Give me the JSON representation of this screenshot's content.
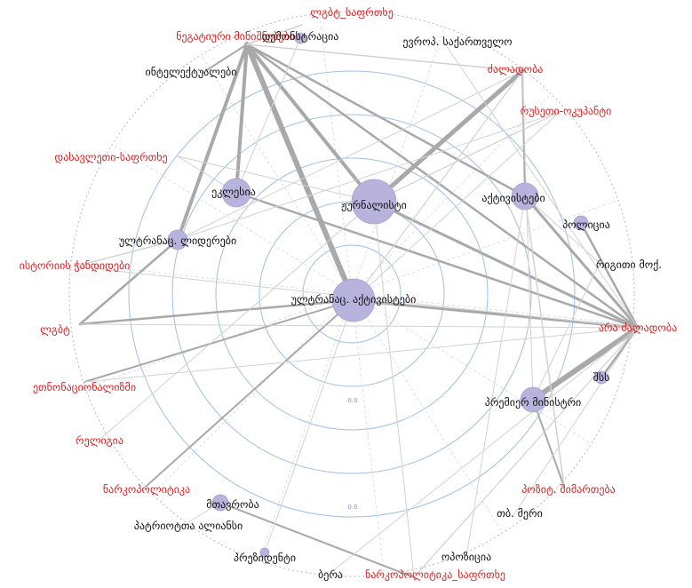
{
  "ring_ticks": [
    "0.0",
    "0.0"
  ],
  "nodes": [
    {
      "id": "lgbt_sap",
      "label": "ლგბტ_საფრთხე",
      "color": "#dd2222"
    },
    {
      "id": "neg_min",
      "label": "ნეგატიური მინიშნებები",
      "color": "#dd2222"
    },
    {
      "id": "demon",
      "label": "დემონსტრაცია",
      "color": "#111111"
    },
    {
      "id": "euro",
      "label": "ევროპ. საქართველო",
      "color": "#111111"
    },
    {
      "id": "intel",
      "label": "ინტელექტუალები",
      "color": "#111111"
    },
    {
      "id": "dzal",
      "label": "ძალადობა",
      "color": "#dd2222"
    },
    {
      "id": "rus",
      "label": "რუსეთი-ოკუპანტი",
      "color": "#dd2222"
    },
    {
      "id": "dasav",
      "label": "დასავლეთი-საფრთხე",
      "color": "#dd2222"
    },
    {
      "id": "eklesia",
      "label": "ეკლესია",
      "color": "#111111"
    },
    {
      "id": "jurn",
      "label": "ჟურნალისტი",
      "color": "#111111"
    },
    {
      "id": "aqt",
      "label": "აქტივისტები",
      "color": "#111111"
    },
    {
      "id": "pol",
      "label": "პოლიცია",
      "color": "#111111"
    },
    {
      "id": "ultra_lid",
      "label": "ულტრანაც. ლიდერები",
      "color": "#111111"
    },
    {
      "id": "istor",
      "label": "ისტორიის ჭანდიდები",
      "color": "#dd2222"
    },
    {
      "id": "rigit",
      "label": "რიგითი მოქ.",
      "color": "#111111"
    },
    {
      "id": "ultra_aqt",
      "label": "ულტრანაც. აქტივისტები",
      "color": "#111111"
    },
    {
      "id": "lgbt",
      "label": "ლგბტ",
      "color": "#dd2222"
    },
    {
      "id": "ara_dzal",
      "label": "არა ძალადობა",
      "color": "#dd2222"
    },
    {
      "id": "shs",
      "label": "შსს",
      "color": "#111111"
    },
    {
      "id": "etnonac",
      "label": "ეთნონაციონალიზმი",
      "color": "#dd2222"
    },
    {
      "id": "premier",
      "label": "პრემიერ მინისტრი",
      "color": "#111111"
    },
    {
      "id": "religia",
      "label": "რელიგია",
      "color": "#dd2222"
    },
    {
      "id": "narko",
      "label": "ნარკოპოლიტიკა",
      "color": "#dd2222"
    },
    {
      "id": "pozit",
      "label": "პოზიტ. შიმართება",
      "color": "#dd2222"
    },
    {
      "id": "mtavroba",
      "label": "მთავრობა",
      "color": "#111111"
    },
    {
      "id": "tb_meri",
      "label": "თბ. მერი",
      "color": "#111111"
    },
    {
      "id": "patriot",
      "label": "პატრიოტთა ალიანსი",
      "color": "#111111"
    },
    {
      "id": "prezid",
      "label": "პრეზიდენტი",
      "color": "#111111"
    },
    {
      "id": "opozic",
      "label": "ოპოზიცია",
      "color": "#111111"
    },
    {
      "id": "bera",
      "label": "ბერა",
      "color": "#111111"
    },
    {
      "id": "narko_sap",
      "label": "ნარკოპოლიტიკა_საფრთხე",
      "color": "#dd2222"
    }
  ]
}
